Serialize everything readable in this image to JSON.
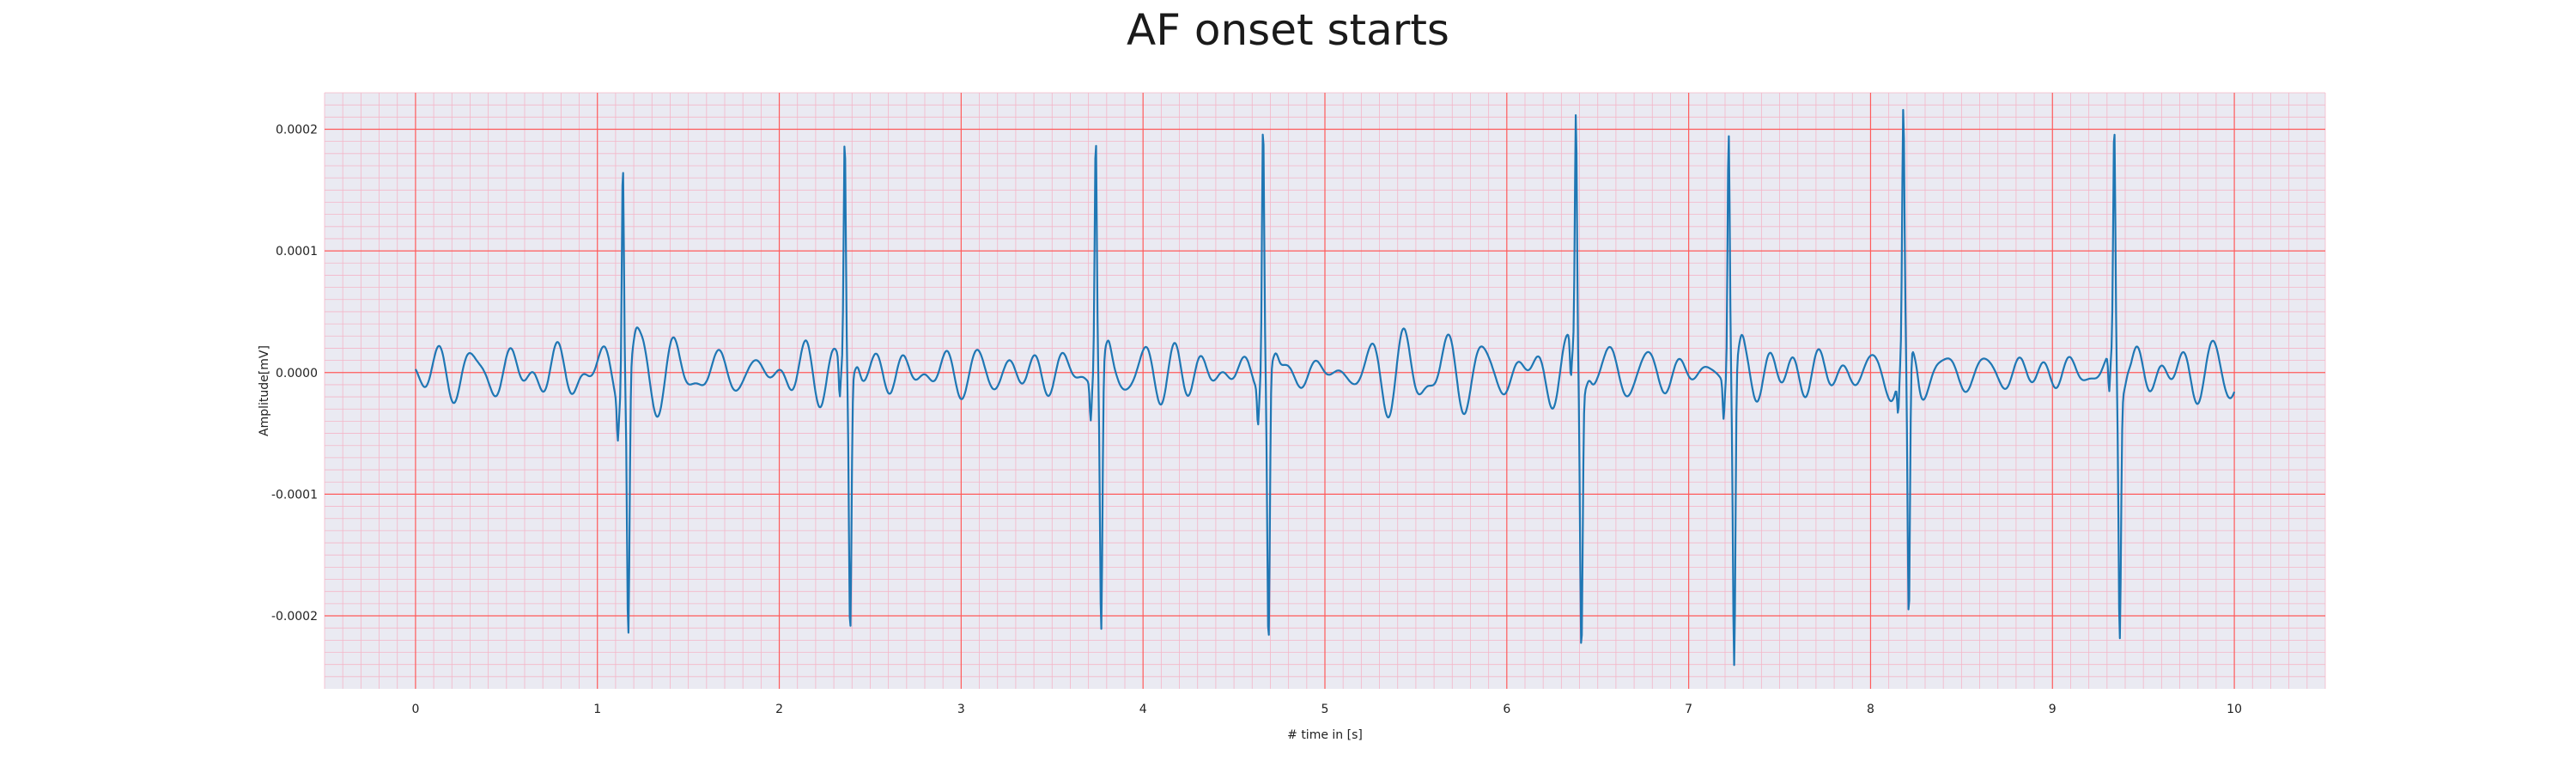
{
  "chart_data": {
    "type": "line",
    "title": "AF onset starts",
    "xlabel": "# time in [s]",
    "ylabel": "Amplitude[mV]",
    "xlim": [
      -0.5,
      10.5
    ],
    "ylim": [
      -0.00026,
      0.00023
    ],
    "xticks": [
      0,
      1,
      2,
      3,
      4,
      5,
      6,
      7,
      8,
      9,
      10
    ],
    "xtick_labels": [
      "0",
      "1",
      "2",
      "3",
      "4",
      "5",
      "6",
      "7",
      "8",
      "9",
      "10"
    ],
    "yticks": [
      -0.0002,
      -0.0001,
      0,
      0.0001,
      0.0002
    ],
    "ytick_labels": [
      "-0.0002",
      "-0.0001",
      "0.0000",
      "0.0001",
      "0.0002"
    ],
    "grid": "major red grid every 1 s and 0.0001 mV, minor pink grid every 0.1 s and 0.00001 mV",
    "series": [
      {
        "color": "#1f77b4",
        "duration_s": 10,
        "baseline_mV": 0,
        "r_peaks": [
          {
            "t": 1.14,
            "peak": 0.000197,
            "trough": -0.00021
          },
          {
            "t": 2.36,
            "peak": 0.000195,
            "trough": -0.00021
          },
          {
            "t": 3.74,
            "peak": 0.0002,
            "trough": -0.00022
          },
          {
            "t": 4.66,
            "peak": 0.000213,
            "trough": -0.000225
          },
          {
            "t": 6.38,
            "peak": 0.000208,
            "trough": -0.000215
          },
          {
            "t": 7.22,
            "peak": 0.000207,
            "trough": -0.00024
          },
          {
            "t": 8.18,
            "peak": 0.000197,
            "trough": -0.00023
          },
          {
            "t": 9.34,
            "peak": 0.000198,
            "trough": -0.000205
          }
        ],
        "fibrillation_amplitude_mV": 2e-05
      }
    ],
    "colors": {
      "background": "#eaeaf2",
      "major_grid": "#ff5a5a",
      "minor_grid": "#f4b6c8",
      "line": "#1f77b4"
    }
  }
}
